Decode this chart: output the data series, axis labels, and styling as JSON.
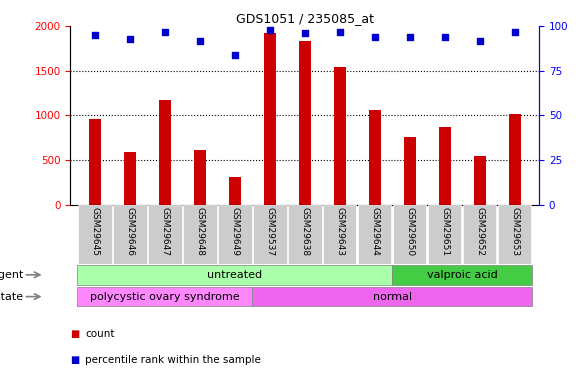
{
  "title": "GDS1051 / 235085_at",
  "categories": [
    "GSM29645",
    "GSM29646",
    "GSM29647",
    "GSM29648",
    "GSM29649",
    "GSM29537",
    "GSM29638",
    "GSM29643",
    "GSM29644",
    "GSM29650",
    "GSM29651",
    "GSM29652",
    "GSM29653"
  ],
  "counts": [
    960,
    590,
    1170,
    610,
    310,
    1920,
    1840,
    1540,
    1060,
    760,
    870,
    540,
    1010
  ],
  "percentile_ranks": [
    95,
    93,
    97,
    92,
    84,
    98,
    96,
    97,
    94,
    94,
    94,
    92,
    97
  ],
  "bar_color": "#cc0000",
  "dot_color": "#0000cc",
  "ylim_left": [
    0,
    2000
  ],
  "ylim_right": [
    0,
    100
  ],
  "yticks_left": [
    0,
    500,
    1000,
    1500,
    2000
  ],
  "yticks_right": [
    0,
    25,
    50,
    75,
    100
  ],
  "grid_values": [
    500,
    1000,
    1500
  ],
  "agent_groups": [
    {
      "label": "untreated",
      "indices": [
        0,
        8
      ],
      "color": "#aaffaa"
    },
    {
      "label": "valproic acid",
      "indices": [
        9,
        12
      ],
      "color": "#44cc44"
    }
  ],
  "disease_groups": [
    {
      "label": "polycystic ovary syndrome",
      "indices": [
        0,
        4
      ],
      "color": "#ff88ff"
    },
    {
      "label": "normal",
      "indices": [
        5,
        12
      ],
      "color": "#ee66ee"
    }
  ],
  "legend_count_label": "count",
  "legend_pct_label": "percentile rank within the sample",
  "tick_bg_color": "#cccccc",
  "bar_width": 0.35
}
